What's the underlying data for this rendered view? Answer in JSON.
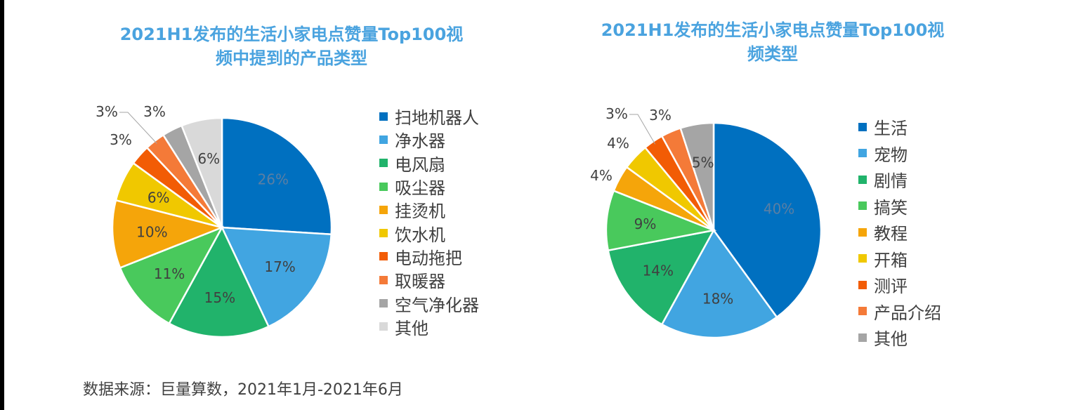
{
  "source": "数据来源：巨量算数，2021年1月-2021年6月",
  "chart_data": [
    {
      "type": "pie",
      "title": "2021H1发布的生活小家电点赞量Top100视频中提到的产品类型",
      "title_lines": [
        "2021H1发布的生活小家电点赞量Top100视",
        "频中提到的产品类型"
      ],
      "legend_position": "right",
      "categories": [
        "扫地机器人",
        "净水器",
        "电风扇",
        "吸尘器",
        "挂烫机",
        "饮水机",
        "电动拖把",
        "取暖器",
        "空气净化器",
        "其他"
      ],
      "values": [
        26,
        17,
        15,
        11,
        10,
        6,
        3,
        3,
        3,
        6
      ],
      "labels": [
        "26%",
        "17%",
        "15%",
        "11%",
        "10%",
        "6%",
        "3%",
        "3%",
        "3%",
        "6%"
      ],
      "colors": [
        "#0070c0",
        "#41a5e1",
        "#21b36b",
        "#49c95c",
        "#f5a50a",
        "#f0c800",
        "#f25c05",
        "#f47a38",
        "#a5a5a5",
        "#d9d9d9"
      ]
    },
    {
      "type": "pie",
      "title": "2021H1发布的生活小家电点赞量Top100视频类型",
      "title_lines": [
        "2021H1发布的生活小家电点赞量Top100视",
        "频类型"
      ],
      "legend_position": "right",
      "categories": [
        "生活",
        "宠物",
        "剧情",
        "搞笑",
        "教程",
        "开箱",
        "测评",
        "产品介绍",
        "其他"
      ],
      "values": [
        40,
        18,
        14,
        9,
        4,
        4,
        3,
        3,
        5
      ],
      "labels": [
        "40%",
        "18%",
        "14%",
        "9%",
        "4%",
        "4%",
        "3%",
        "3%",
        "5%"
      ],
      "colors": [
        "#0070c0",
        "#41a5e1",
        "#21b36b",
        "#49c95c",
        "#f5a50a",
        "#f0c800",
        "#f25c05",
        "#f47a38",
        "#a5a5a5"
      ]
    }
  ]
}
